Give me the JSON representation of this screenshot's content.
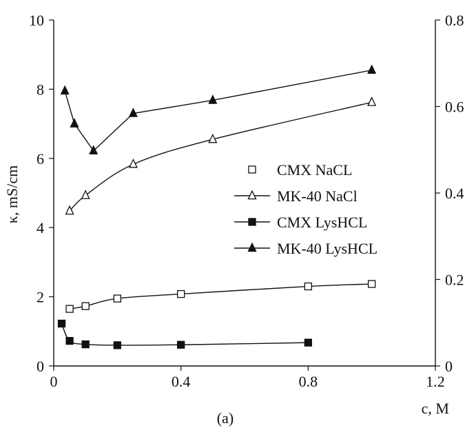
{
  "chart_data": {
    "type": "line",
    "caption": "(a)",
    "xlabel": "c, M",
    "ylabel": "κ, mS/cm",
    "x_axis": {
      "min": 0,
      "max": 1.2,
      "ticks": [
        0,
        0.4,
        0.8,
        1.2
      ],
      "tick_labels": [
        "0",
        "0.4",
        "0.8",
        "1.2"
      ]
    },
    "y_left": {
      "min": 0,
      "max": 10,
      "ticks": [
        0,
        2,
        4,
        6,
        8,
        10
      ],
      "tick_labels": [
        "0",
        "2",
        "4",
        "6",
        "8",
        "10"
      ]
    },
    "y_right": {
      "min": 0,
      "max": 0.8,
      "ticks": [
        0,
        0.2,
        0.4,
        0.6,
        0.8
      ],
      "tick_labels": [
        "0",
        "0.2",
        "0.4",
        "0.6",
        "0.8"
      ]
    },
    "grid": false,
    "legend_position": "middle-right",
    "series": [
      {
        "name": "CMX NaCL",
        "marker": "square-open",
        "axis": "left",
        "x": [
          0.05,
          0.1,
          0.2,
          0.4,
          0.8,
          1.0
        ],
        "y": [
          1.65,
          1.73,
          1.95,
          2.08,
          2.3,
          2.37
        ]
      },
      {
        "name": "MK-40 NaCl",
        "marker": "triangle-open",
        "axis": "left",
        "x": [
          0.05,
          0.1,
          0.25,
          0.5,
          1.0
        ],
        "y": [
          4.48,
          4.93,
          5.83,
          6.55,
          7.62
        ]
      },
      {
        "name": "CMX LysHCL",
        "marker": "square-filled",
        "axis": "right",
        "x": [
          0.025,
          0.05,
          0.1,
          0.2,
          0.4,
          0.8
        ],
        "y": [
          0.098,
          0.058,
          0.05,
          0.048,
          0.049,
          0.054
        ]
      },
      {
        "name": "MK-40 LysHCL",
        "marker": "triangle-filled",
        "axis": "left",
        "x": [
          0.035,
          0.065,
          0.125,
          0.25,
          0.5,
          1.0
        ],
        "y": [
          7.95,
          7.0,
          6.22,
          7.3,
          7.68,
          8.55
        ]
      }
    ]
  }
}
